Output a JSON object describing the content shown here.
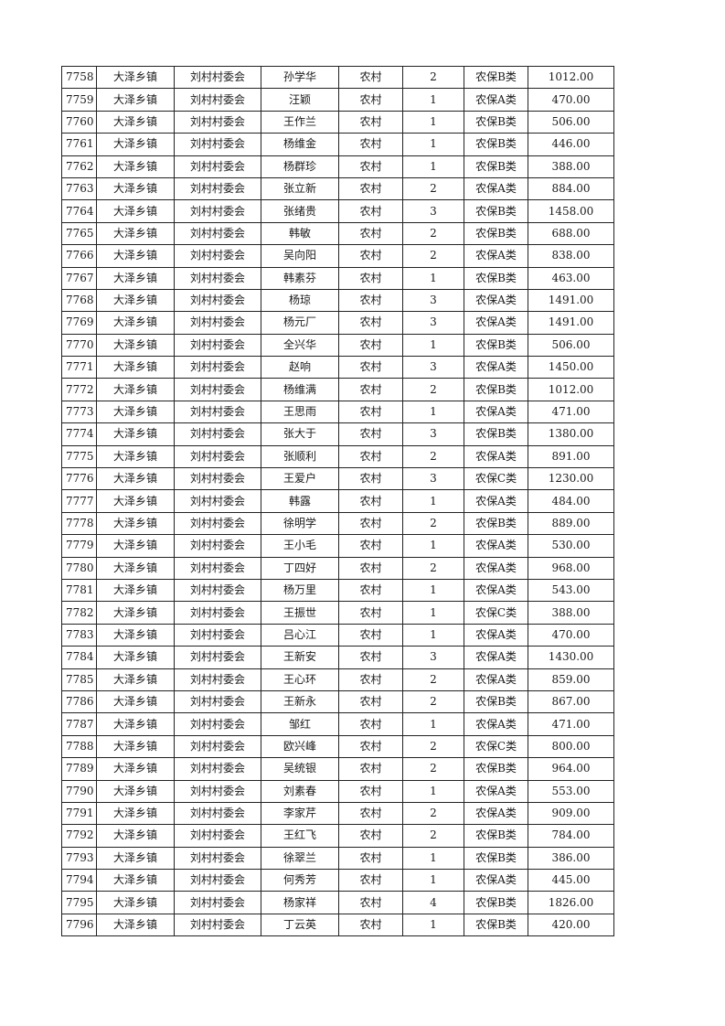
{
  "table": {
    "rows": [
      [
        "7758",
        "大泽乡镇",
        "刘村村委会",
        "孙学华",
        "农村",
        "2",
        "农保B类",
        "1012.00"
      ],
      [
        "7759",
        "大泽乡镇",
        "刘村村委会",
        "汪颖",
        "农村",
        "1",
        "农保A类",
        "470.00"
      ],
      [
        "7760",
        "大泽乡镇",
        "刘村村委会",
        "王作兰",
        "农村",
        "1",
        "农保B类",
        "506.00"
      ],
      [
        "7761",
        "大泽乡镇",
        "刘村村委会",
        "杨维金",
        "农村",
        "1",
        "农保B类",
        "446.00"
      ],
      [
        "7762",
        "大泽乡镇",
        "刘村村委会",
        "杨群珍",
        "农村",
        "1",
        "农保B类",
        "388.00"
      ],
      [
        "7763",
        "大泽乡镇",
        "刘村村委会",
        "张立新",
        "农村",
        "2",
        "农保A类",
        "884.00"
      ],
      [
        "7764",
        "大泽乡镇",
        "刘村村委会",
        "张绪贵",
        "农村",
        "3",
        "农保B类",
        "1458.00"
      ],
      [
        "7765",
        "大泽乡镇",
        "刘村村委会",
        "韩敏",
        "农村",
        "2",
        "农保B类",
        "688.00"
      ],
      [
        "7766",
        "大泽乡镇",
        "刘村村委会",
        "吴向阳",
        "农村",
        "2",
        "农保A类",
        "838.00"
      ],
      [
        "7767",
        "大泽乡镇",
        "刘村村委会",
        "韩素芬",
        "农村",
        "1",
        "农保B类",
        "463.00"
      ],
      [
        "7768",
        "大泽乡镇",
        "刘村村委会",
        "杨琼",
        "农村",
        "3",
        "农保A类",
        "1491.00"
      ],
      [
        "7769",
        "大泽乡镇",
        "刘村村委会",
        "杨元厂",
        "农村",
        "3",
        "农保A类",
        "1491.00"
      ],
      [
        "7770",
        "大泽乡镇",
        "刘村村委会",
        "全兴华",
        "农村",
        "1",
        "农保B类",
        "506.00"
      ],
      [
        "7771",
        "大泽乡镇",
        "刘村村委会",
        "赵响",
        "农村",
        "3",
        "农保A类",
        "1450.00"
      ],
      [
        "7772",
        "大泽乡镇",
        "刘村村委会",
        "杨维满",
        "农村",
        "2",
        "农保B类",
        "1012.00"
      ],
      [
        "7773",
        "大泽乡镇",
        "刘村村委会",
        "王思雨",
        "农村",
        "1",
        "农保A类",
        "471.00"
      ],
      [
        "7774",
        "大泽乡镇",
        "刘村村委会",
        "张大于",
        "农村",
        "3",
        "农保B类",
        "1380.00"
      ],
      [
        "7775",
        "大泽乡镇",
        "刘村村委会",
        "张顺利",
        "农村",
        "2",
        "农保A类",
        "891.00"
      ],
      [
        "7776",
        "大泽乡镇",
        "刘村村委会",
        "王爱户",
        "农村",
        "3",
        "农保C类",
        "1230.00"
      ],
      [
        "7777",
        "大泽乡镇",
        "刘村村委会",
        "韩露",
        "农村",
        "1",
        "农保A类",
        "484.00"
      ],
      [
        "7778",
        "大泽乡镇",
        "刘村村委会",
        "徐明学",
        "农村",
        "2",
        "农保B类",
        "889.00"
      ],
      [
        "7779",
        "大泽乡镇",
        "刘村村委会",
        "王小毛",
        "农村",
        "1",
        "农保A类",
        "530.00"
      ],
      [
        "7780",
        "大泽乡镇",
        "刘村村委会",
        "丁四好",
        "农村",
        "2",
        "农保A类",
        "968.00"
      ],
      [
        "7781",
        "大泽乡镇",
        "刘村村委会",
        "杨万里",
        "农村",
        "1",
        "农保A类",
        "543.00"
      ],
      [
        "7782",
        "大泽乡镇",
        "刘村村委会",
        "王振世",
        "农村",
        "1",
        "农保C类",
        "388.00"
      ],
      [
        "7783",
        "大泽乡镇",
        "刘村村委会",
        "吕心江",
        "农村",
        "1",
        "农保A类",
        "470.00"
      ],
      [
        "7784",
        "大泽乡镇",
        "刘村村委会",
        "王新安",
        "农村",
        "3",
        "农保A类",
        "1430.00"
      ],
      [
        "7785",
        "大泽乡镇",
        "刘村村委会",
        "王心环",
        "农村",
        "2",
        "农保A类",
        "859.00"
      ],
      [
        "7786",
        "大泽乡镇",
        "刘村村委会",
        "王新永",
        "农村",
        "2",
        "农保B类",
        "867.00"
      ],
      [
        "7787",
        "大泽乡镇",
        "刘村村委会",
        "邹红",
        "农村",
        "1",
        "农保A类",
        "471.00"
      ],
      [
        "7788",
        "大泽乡镇",
        "刘村村委会",
        "欧兴峰",
        "农村",
        "2",
        "农保C类",
        "800.00"
      ],
      [
        "7789",
        "大泽乡镇",
        "刘村村委会",
        "吴统银",
        "农村",
        "2",
        "农保B类",
        "964.00"
      ],
      [
        "7790",
        "大泽乡镇",
        "刘村村委会",
        "刘素春",
        "农村",
        "1",
        "农保A类",
        "553.00"
      ],
      [
        "7791",
        "大泽乡镇",
        "刘村村委会",
        "李家芹",
        "农村",
        "2",
        "农保A类",
        "909.00"
      ],
      [
        "7792",
        "大泽乡镇",
        "刘村村委会",
        "王红飞",
        "农村",
        "2",
        "农保B类",
        "784.00"
      ],
      [
        "7793",
        "大泽乡镇",
        "刘村村委会",
        "徐翠兰",
        "农村",
        "1",
        "农保B类",
        "386.00"
      ],
      [
        "7794",
        "大泽乡镇",
        "刘村村委会",
        "何秀芳",
        "农村",
        "1",
        "农保A类",
        "445.00"
      ],
      [
        "7795",
        "大泽乡镇",
        "刘村村委会",
        "杨家祥",
        "农村",
        "4",
        "农保B类",
        "1826.00"
      ],
      [
        "7796",
        "大泽乡镇",
        "刘村村委会",
        "丁云英",
        "农村",
        "1",
        "农保B类",
        "420.00"
      ]
    ]
  }
}
